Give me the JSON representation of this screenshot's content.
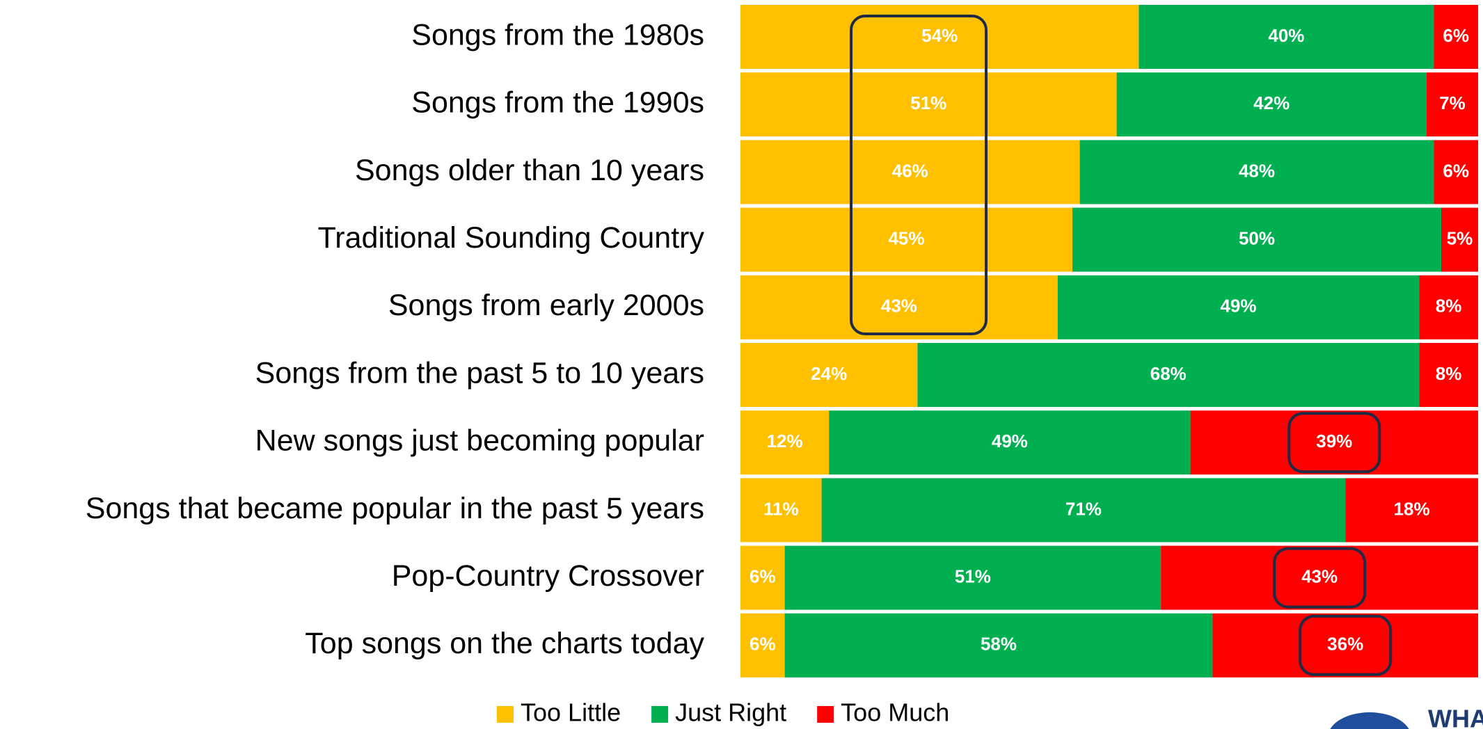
{
  "chart_data": {
    "type": "stacked-bar-horizontal",
    "categories": [
      "Songs from the 1980s",
      "Songs from the 1990s",
      "Songs older than 10 years",
      "Traditional Sounding Country",
      "Songs from early 2000s",
      "Songs from the past 5 to 10 years",
      "New songs just becoming popular",
      "Songs that became popular in the past 5 years",
      "Pop-Country Crossover",
      "Top songs on the charts today"
    ],
    "series": [
      {
        "name": "Too Little",
        "color": "#FFC000",
        "values": [
          54,
          51,
          46,
          45,
          43,
          24,
          12,
          11,
          6,
          6
        ],
        "value_labels": [
          "54%",
          "51%",
          "46%",
          "45%",
          "43%",
          "24%",
          "12%",
          "11%",
          "6%",
          "6%"
        ]
      },
      {
        "name": "Just Right",
        "color": "#00B050",
        "values": [
          40,
          42,
          48,
          50,
          49,
          68,
          49,
          71,
          51,
          58
        ],
        "value_labels": [
          "40%",
          "42%",
          "48%",
          "50%",
          "49%",
          "68%",
          "49%",
          "71%",
          "51%",
          "58%"
        ]
      },
      {
        "name": "Too Much",
        "color": "#FF0000",
        "values": [
          6,
          7,
          6,
          5,
          8,
          8,
          39,
          18,
          43,
          36
        ],
        "value_labels": [
          "6%",
          "7%",
          "6%",
          "5%",
          "8%",
          "8%",
          "39%",
          "18%",
          "43%",
          "36%"
        ]
      }
    ],
    "xlim": [
      0,
      100
    ],
    "legend": "bottom",
    "logo_text": "WHA"
  }
}
